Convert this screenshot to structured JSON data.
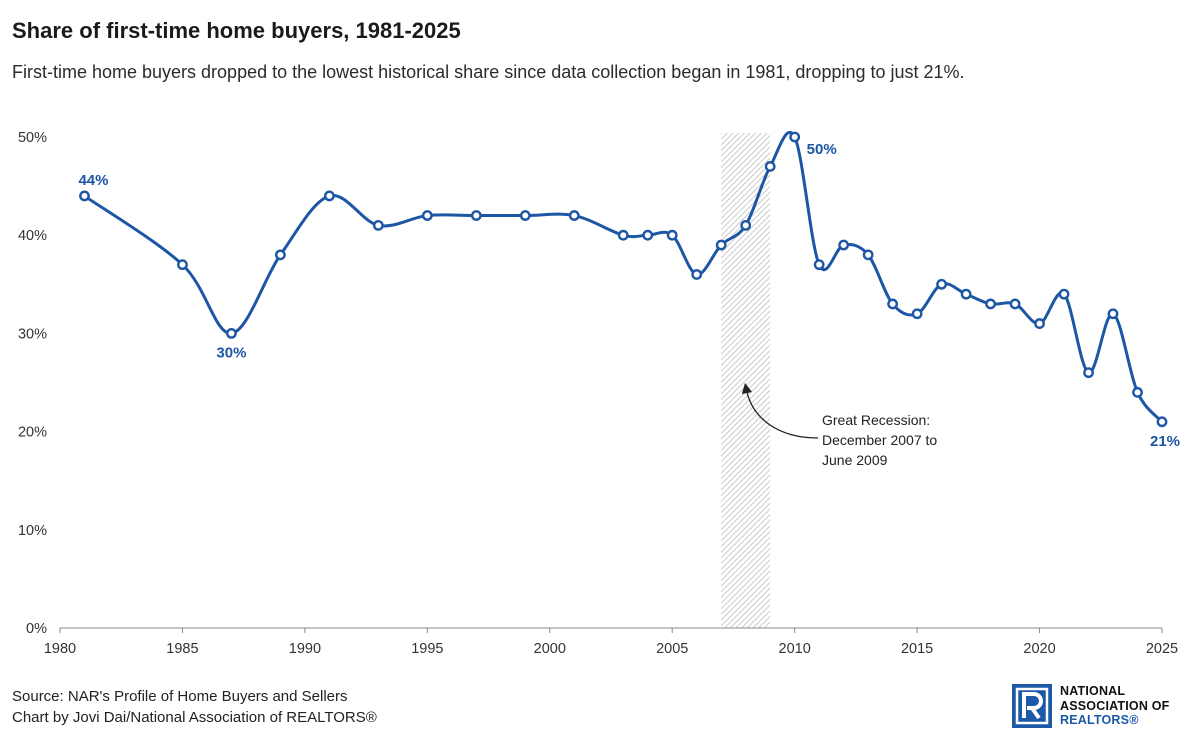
{
  "header": {
    "title": "Share of first-time home buyers, 1981-2025",
    "subtitle": "First-time home buyers dropped to the lowest historical share since data collection began in 1981, dropping to just 21%."
  },
  "footer": {
    "source_line": "Source: NAR's Profile of Home Buyers and Sellers",
    "credit_line": "Chart by Jovi Dai/National Association of REALTORS®"
  },
  "logo": {
    "line1": "NATIONAL",
    "line2": "ASSOCIATION OF",
    "line3": "REALTORS®",
    "color": "#1c5aa8"
  },
  "chart_data": {
    "type": "line",
    "title": "Share of first-time home buyers, 1981-2025",
    "xlim": [
      1980,
      2025
    ],
    "ylim": [
      0,
      50
    ],
    "x_ticks": [
      1980,
      1985,
      1990,
      1995,
      2000,
      2005,
      2010,
      2015,
      2020,
      2025
    ],
    "x_tick_labels": [
      "1980",
      "1985",
      "1990",
      "1995",
      "2000",
      "2005",
      "2010",
      "2015",
      "2020",
      "2025"
    ],
    "y_ticks": [
      0,
      10,
      20,
      30,
      40,
      50
    ],
    "y_tick_labels": [
      "0%",
      "10%",
      "20%",
      "30%",
      "40%",
      "50%"
    ],
    "grid": false,
    "line_color": "#1c56a4",
    "series": [
      {
        "x": [
          1981,
          1985,
          1987,
          1989,
          1991,
          1993,
          1995,
          1997,
          1999,
          2001,
          2003,
          2004,
          2005,
          2006,
          2007,
          2008,
          2009,
          2010,
          2011,
          2012,
          2013,
          2014,
          2015,
          2016,
          2017,
          2018,
          2019,
          2020,
          2021,
          2022,
          2023,
          2024,
          2025
        ],
        "values": [
          44,
          37,
          30,
          38,
          44,
          41,
          42,
          42,
          42,
          42,
          40,
          40,
          40,
          36,
          39,
          41,
          47,
          50,
          37,
          39,
          38,
          33,
          32,
          35,
          34,
          33,
          33,
          31,
          34,
          26,
          32,
          24,
          21
        ]
      }
    ],
    "data_labels": [
      {
        "x": 1981,
        "y": 44,
        "text": "44%",
        "pos": "above"
      },
      {
        "x": 1987,
        "y": 30,
        "text": "30%",
        "pos": "below"
      },
      {
        "x": 2010,
        "y": 50,
        "text": "50%",
        "pos": "right"
      },
      {
        "x": 2025,
        "y": 21,
        "text": "21%",
        "pos": "below"
      }
    ],
    "shaded_region": {
      "x_start": 2007,
      "x_end": 2009
    },
    "annotation": {
      "lines": [
        "Great Recession:",
        "December 2007 to",
        "June 2009"
      ]
    }
  }
}
